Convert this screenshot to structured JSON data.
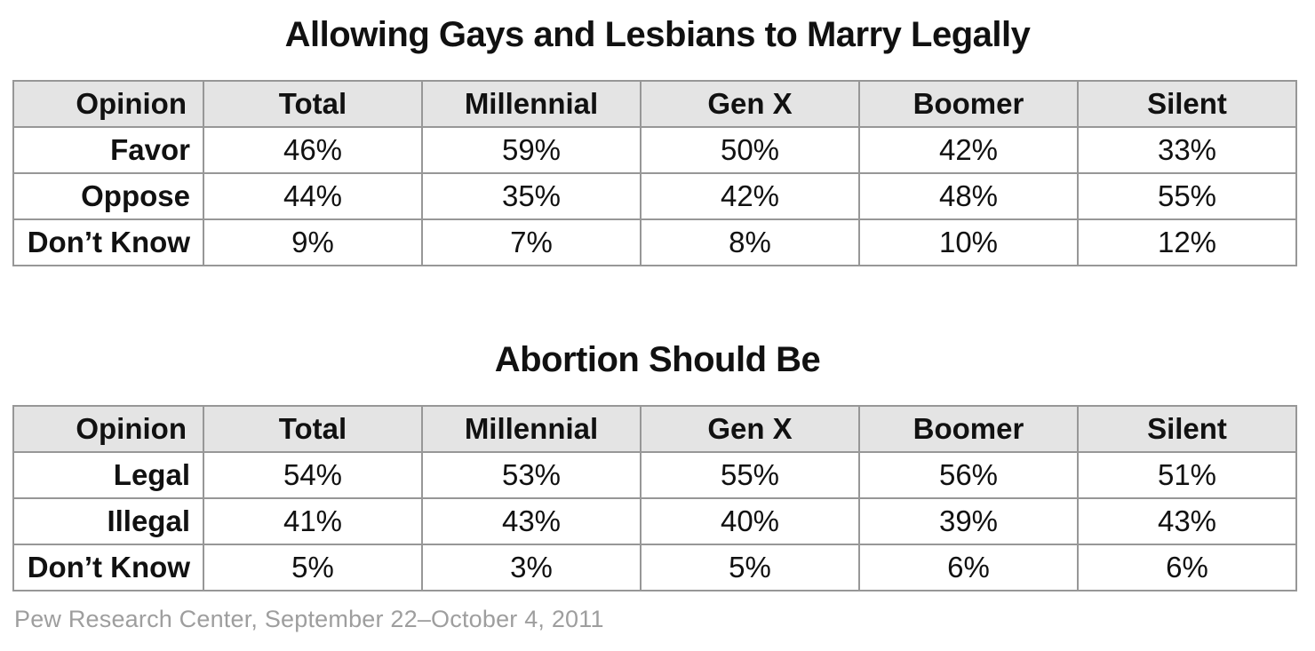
{
  "source_note": "Pew Research Center, September 22–October 4, 2011",
  "colors": {
    "header_bg": "#e4e4e4",
    "border": "#979797",
    "text": "#111111",
    "source_text": "#9e9e9e"
  },
  "chart_data": [
    {
      "type": "table",
      "title": "Allowing Gays and Lesbians to Marry Legally",
      "columns": [
        "Opinion",
        "Total",
        "Millennial",
        "Gen X",
        "Boomer",
        "Silent"
      ],
      "rows": [
        {
          "label": "Favor",
          "values": [
            "46%",
            "59%",
            "50%",
            "42%",
            "33%"
          ]
        },
        {
          "label": "Oppose",
          "values": [
            "44%",
            "35%",
            "42%",
            "48%",
            "55%"
          ]
        },
        {
          "label": "Don’t Know",
          "values": [
            "9%",
            "7%",
            "8%",
            "10%",
            "12%"
          ]
        }
      ]
    },
    {
      "type": "table",
      "title": "Abortion Should Be",
      "columns": [
        "Opinion",
        "Total",
        "Millennial",
        "Gen X",
        "Boomer",
        "Silent"
      ],
      "rows": [
        {
          "label": "Legal",
          "values": [
            "54%",
            "53%",
            "55%",
            "56%",
            "51%"
          ]
        },
        {
          "label": "Illegal",
          "values": [
            "41%",
            "43%",
            "40%",
            "39%",
            "43%"
          ]
        },
        {
          "label": "Don’t Know",
          "values": [
            "5%",
            "3%",
            "5%",
            "6%",
            "6%"
          ]
        }
      ]
    }
  ]
}
